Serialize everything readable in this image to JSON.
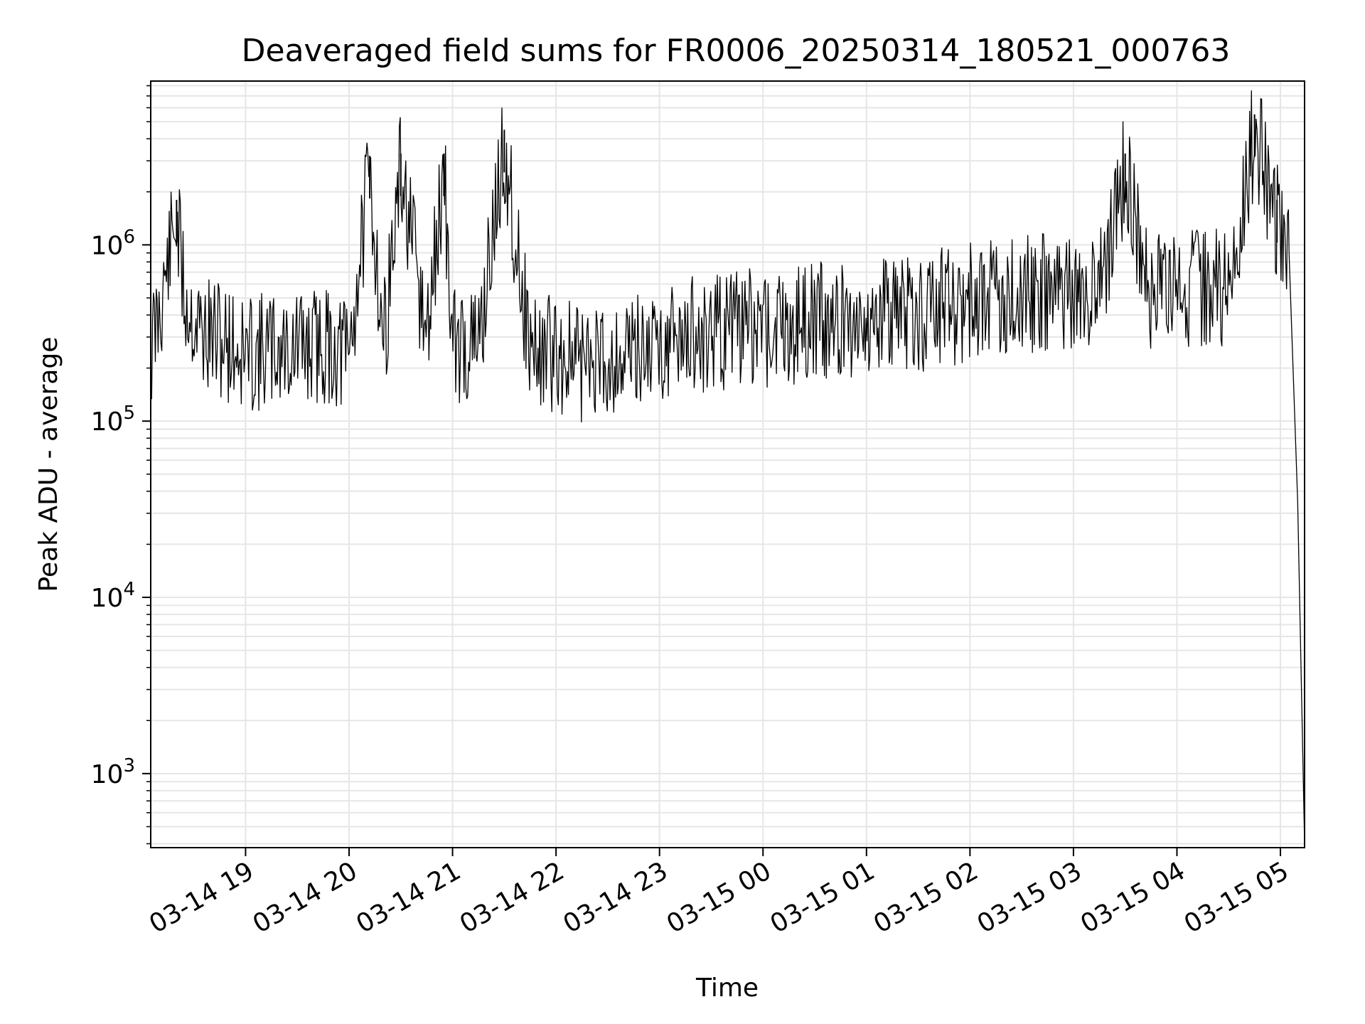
{
  "chart_data": {
    "type": "line",
    "title": "Deaveraged field sums for FR0006_20250314_180521_000763",
    "xlabel": "Time",
    "ylabel": "Peak ADU - average",
    "yscale": "log",
    "ylim": [
      380,
      8500000
    ],
    "xlim": [
      "2025-03-14 18:05",
      "2025-03-15 05:14"
    ],
    "grid": true,
    "line_color": "#000000",
    "grid_color": "#e6e6e6",
    "x_ticks": [
      {
        "t": "2025-03-14 19:00",
        "label": "03-14 19"
      },
      {
        "t": "2025-03-14 20:00",
        "label": "03-14 20"
      },
      {
        "t": "2025-03-14 21:00",
        "label": "03-14 21"
      },
      {
        "t": "2025-03-14 22:00",
        "label": "03-14 22"
      },
      {
        "t": "2025-03-14 23:00",
        "label": "03-14 23"
      },
      {
        "t": "2025-03-15 00:00",
        "label": "03-15 00"
      },
      {
        "t": "2025-03-15 01:00",
        "label": "03-15 01"
      },
      {
        "t": "2025-03-15 02:00",
        "label": "03-15 02"
      },
      {
        "t": "2025-03-15 03:00",
        "label": "03-15 03"
      },
      {
        "t": "2025-03-15 04:00",
        "label": "03-15 04"
      },
      {
        "t": "2025-03-15 05:00",
        "label": "03-15 05"
      }
    ],
    "y_ticks": [
      {
        "value": 1000,
        "base": "10",
        "exp": "3"
      },
      {
        "value": 10000,
        "base": "10",
        "exp": "4"
      },
      {
        "value": 100000,
        "base": "10",
        "exp": "5"
      },
      {
        "value": 1000000,
        "base": "10",
        "exp": "6"
      }
    ],
    "series": [
      {
        "x": [
          "2025-03-14 18:05",
          "2025-03-14 18:20",
          "2025-03-14 18:25",
          "2025-03-14 18:35",
          "2025-03-14 18:50",
          "2025-03-14 19:00",
          "2025-03-14 19:15",
          "2025-03-14 19:30",
          "2025-03-14 19:45",
          "2025-03-14 20:00",
          "2025-03-14 20:12",
          "2025-03-14 20:20",
          "2025-03-14 20:30",
          "2025-03-14 20:45",
          "2025-03-14 20:55",
          "2025-03-14 21:00",
          "2025-03-14 21:15",
          "2025-03-14 21:30",
          "2025-03-14 21:45",
          "2025-03-14 22:00",
          "2025-03-14 22:15",
          "2025-03-14 22:30",
          "2025-03-14 22:45",
          "2025-03-14 23:00",
          "2025-03-14 23:15",
          "2025-03-14 23:30",
          "2025-03-14 23:45",
          "2025-03-15 00:00",
          "2025-03-15 00:15",
          "2025-03-15 00:30",
          "2025-03-15 00:45",
          "2025-03-15 01:00",
          "2025-03-15 01:15",
          "2025-03-15 01:30",
          "2025-03-15 01:45",
          "2025-03-15 02:00",
          "2025-03-15 02:15",
          "2025-03-15 02:30",
          "2025-03-15 02:45",
          "2025-03-15 03:00",
          "2025-03-15 03:15",
          "2025-03-15 03:30",
          "2025-03-15 03:45",
          "2025-03-15 04:00",
          "2025-03-15 04:15",
          "2025-03-15 04:30",
          "2025-03-15 04:45",
          "2025-03-15 04:58",
          "2025-03-15 05:05",
          "2025-03-15 05:10",
          "2025-03-15 05:14"
        ],
        "y": [
          300000,
          1800000,
          600000,
          400000,
          350000,
          300000,
          320000,
          330000,
          340000,
          300000,
          3200000,
          350000,
          3300000,
          350000,
          3300000,
          330000,
          340000,
          4500000,
          320000,
          300000,
          270000,
          290000,
          320000,
          360000,
          380000,
          400000,
          420000,
          430000,
          440000,
          460000,
          480000,
          490000,
          500000,
          520000,
          560000,
          600000,
          640000,
          660000,
          680000,
          690000,
          700000,
          3300000,
          700000,
          720000,
          710000,
          740000,
          5500000,
          1800000,
          900000,
          35000,
          400
        ]
      }
    ]
  }
}
